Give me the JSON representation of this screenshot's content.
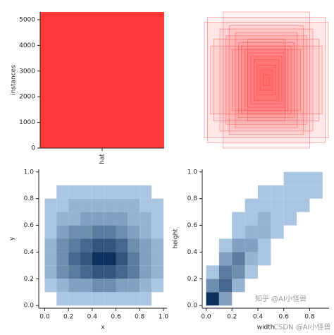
{
  "chart_data": [
    {
      "type": "bar",
      "categories": [
        "hat"
      ],
      "values": [
        5300
      ],
      "color": "#ff3838",
      "ylabel": "instances",
      "ylim": [
        0,
        5300
      ],
      "yticks": [
        0,
        1000,
        2000,
        3000,
        4000,
        5000
      ]
    },
    {
      "type": "boxes",
      "color": "#ff3838",
      "xlim": [
        0,
        1
      ],
      "ylim": [
        0,
        1
      ],
      "widths": [
        1.0,
        0.95,
        0.7,
        0.85,
        0.6,
        0.5,
        0.45,
        0.4,
        0.35,
        0.3,
        0.25,
        0.2,
        0.55,
        0.65,
        0.3,
        0.15,
        0.1,
        0.05,
        0.75,
        0.9
      ],
      "heights": [
        0.85,
        0.92,
        1.0,
        0.6,
        0.8,
        0.7,
        0.55,
        0.5,
        0.45,
        0.4,
        0.35,
        0.3,
        0.45,
        0.65,
        0.6,
        0.22,
        0.15,
        0.08,
        0.75,
        0.5
      ]
    },
    {
      "type": "heatmap",
      "xlabel": "x",
      "ylabel": "y",
      "xlim": [
        -0.05,
        1.03
      ],
      "ylim": [
        -0.02,
        1.02
      ],
      "xticks": [
        {
          "value": 0,
          "label": "0.0"
        },
        {
          "value": 0.2,
          "label": "0.2"
        },
        {
          "value": 0.4,
          "label": "0.4"
        },
        {
          "value": 0.6,
          "label": "0.6"
        },
        {
          "value": 0.8,
          "label": "0.8"
        },
        {
          "value": 1,
          "label": "1.0"
        }
      ],
      "yticks": [
        {
          "value": 0,
          "label": "0.0"
        },
        {
          "value": 0.2,
          "label": "0.2"
        },
        {
          "value": 0.4,
          "label": "0.4"
        },
        {
          "value": 0.6,
          "label": "0.6"
        },
        {
          "value": 0.8,
          "label": "0.8"
        },
        {
          "value": 1,
          "label": "1.0"
        }
      ],
      "x_bins": [
        0,
        0.1,
        0.2,
        0.3,
        0.4,
        0.5,
        0.6,
        0.7,
        0.8,
        0.9,
        1.0
      ],
      "y_bins": [
        0,
        0.1,
        0.2,
        0.3,
        0.4,
        0.5,
        0.6,
        0.7,
        0.8,
        0.9,
        1.0
      ],
      "counts": [
        [
          0,
          1,
          1,
          1,
          1,
          1,
          1,
          1,
          1,
          0
        ],
        [
          1,
          2,
          3,
          3,
          4,
          4,
          3,
          3,
          2,
          1
        ],
        [
          2,
          4,
          5,
          6,
          7,
          7,
          6,
          5,
          3,
          2
        ],
        [
          2,
          4,
          6,
          7,
          9,
          9,
          7,
          5,
          3,
          2
        ],
        [
          2,
          4,
          5,
          6,
          7,
          7,
          6,
          4,
          3,
          2
        ],
        [
          1,
          3,
          4,
          4,
          5,
          5,
          4,
          3,
          2,
          1
        ],
        [
          1,
          2,
          2,
          3,
          3,
          3,
          3,
          2,
          2,
          1
        ],
        [
          1,
          1,
          2,
          2,
          2,
          2,
          2,
          2,
          1,
          1
        ],
        [
          0,
          1,
          1,
          1,
          1,
          1,
          1,
          1,
          1,
          0
        ],
        [
          0,
          0,
          0,
          0,
          0,
          0,
          0,
          0,
          0,
          0
        ]
      ]
    },
    {
      "type": "heatmap",
      "xlabel": "width",
      "ylabel": "height",
      "xlim": [
        -0.03,
        0.95
      ],
      "ylim": [
        -0.02,
        1.02
      ],
      "xticks": [
        {
          "value": 0,
          "label": "0.0"
        },
        {
          "value": 0.2,
          "label": "0.2"
        },
        {
          "value": 0.4,
          "label": "0.4"
        },
        {
          "value": 0.6,
          "label": "0.6"
        },
        {
          "value": 0.8,
          "label": "0.8"
        }
      ],
      "yticks": [
        {
          "value": 0,
          "label": "0.0"
        },
        {
          "value": 0.2,
          "label": "0.2"
        },
        {
          "value": 0.4,
          "label": "0.4"
        },
        {
          "value": 0.6,
          "label": "0.6"
        },
        {
          "value": 0.8,
          "label": "0.8"
        },
        {
          "value": 1,
          "label": "1.0"
        }
      ],
      "x_bins": [
        0,
        0.1,
        0.2,
        0.3,
        0.4,
        0.5,
        0.6,
        0.7,
        0.8,
        0.9
      ],
      "y_bins": [
        0,
        0.1,
        0.2,
        0.3,
        0.4,
        0.5,
        0.6,
        0.7,
        0.8,
        0.9,
        1.0
      ],
      "counts": [
        [
          9,
          3,
          0,
          0,
          0,
          0,
          0,
          0,
          0
        ],
        [
          4,
          6,
          2,
          0,
          0,
          0,
          0,
          0,
          0
        ],
        [
          1,
          5,
          4,
          1,
          0,
          0,
          0,
          0,
          0
        ],
        [
          0,
          3,
          5,
          2,
          1,
          0,
          0,
          0,
          0
        ],
        [
          0,
          1,
          3,
          3,
          1,
          0,
          0,
          0,
          0
        ],
        [
          0,
          0,
          1,
          2,
          2,
          1,
          0,
          0,
          0
        ],
        [
          0,
          0,
          1,
          1,
          2,
          1,
          1,
          0,
          0
        ],
        [
          0,
          0,
          0,
          1,
          1,
          1,
          1,
          1,
          0
        ],
        [
          0,
          0,
          0,
          0,
          1,
          1,
          1,
          1,
          1
        ],
        [
          0,
          0,
          0,
          0,
          0,
          0,
          1,
          1,
          1
        ]
      ]
    }
  ],
  "watermarks": [
    "知乎 @AI小怪兽",
    "CSDN @AI小怪兽"
  ]
}
